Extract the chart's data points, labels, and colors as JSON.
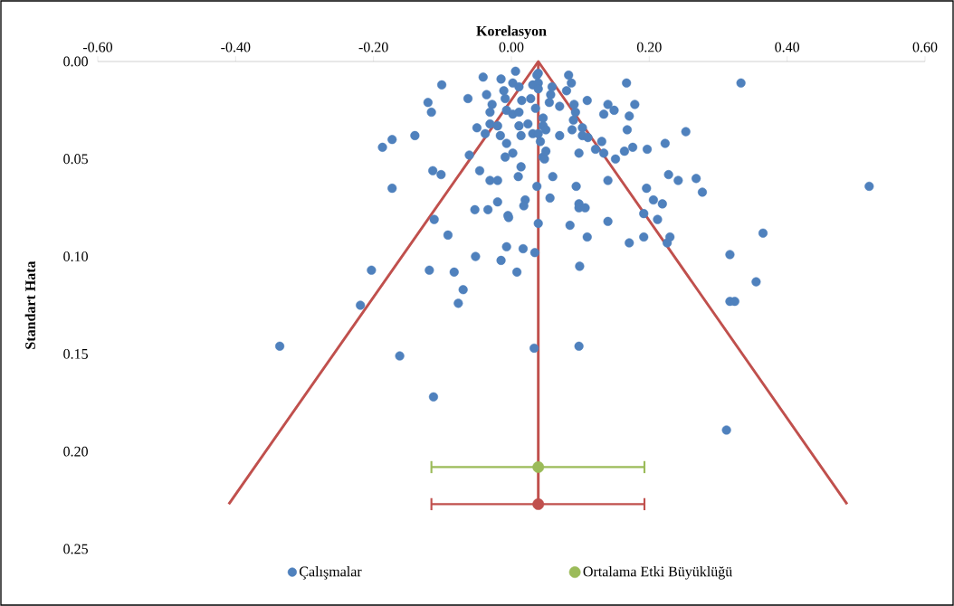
{
  "chart_data": {
    "type": "scatter",
    "xlabel": "Korelasyon",
    "ylabel": "Standart Hata",
    "xlim": [
      -0.6,
      0.6
    ],
    "ylim": [
      0.25,
      0.0
    ],
    "xticks": [
      {
        "value": -0.6,
        "label": "-0.60"
      },
      {
        "value": -0.4,
        "label": "-0.40"
      },
      {
        "value": -0.2,
        "label": "-0.20"
      },
      {
        "value": 0.0,
        "label": "0.00"
      },
      {
        "value": 0.2,
        "label": "0.20"
      },
      {
        "value": 0.4,
        "label": "0.40"
      },
      {
        "value": 0.6,
        "label": "0.60"
      }
    ],
    "yticks": [
      {
        "value": 0.0,
        "label": "0.00"
      },
      {
        "value": 0.05,
        "label": "0.05"
      },
      {
        "value": 0.1,
        "label": "0.10"
      },
      {
        "value": 0.15,
        "label": "0.15"
      },
      {
        "value": 0.2,
        "label": "0.20"
      },
      {
        "value": 0.25,
        "label": "0.25"
      }
    ],
    "marker": "circle",
    "legend": "bottom",
    "series": [
      {
        "name": "Çalışmalar",
        "color": "#4f81bd",
        "x": [
          -0.041,
          -0.015,
          0.006,
          -0.101,
          -0.121,
          -0.116,
          -0.063,
          -0.036,
          -0.011,
          -0.009,
          0.002,
          -0.028,
          -0.031,
          -0.007,
          0.002,
          0.011,
          0.015,
          0.028,
          0.035,
          0.031,
          0.037,
          0.011,
          -0.031,
          -0.02,
          -0.05,
          -0.038,
          -0.016,
          -0.007,
          0.011,
          0.024,
          0.014,
          0.031,
          0.042,
          -0.14,
          -0.173,
          -0.187,
          -0.061,
          -0.009,
          0.002,
          0.014,
          0.01,
          -0.114,
          -0.102,
          -0.046,
          -0.031,
          -0.02,
          0.046,
          0.039,
          0.039,
          0.039,
          0.059,
          0.057,
          0.055,
          0.083,
          0.087,
          0.08,
          0.07,
          0.11,
          0.091,
          0.093,
          0.09,
          0.088,
          0.103,
          0.103,
          0.111,
          0.14,
          0.149,
          0.134,
          0.167,
          0.179,
          0.171,
          0.168,
          0.046,
          0.046,
          0.039,
          0.05,
          0.07,
          0.253,
          0.223,
          0.197,
          0.176,
          0.164,
          0.131,
          0.122,
          0.134,
          0.151,
          0.098,
          0.05,
          0.048,
          0.06,
          0.14,
          0.228,
          0.242,
          0.268,
          -0.173,
          0.037,
          0.02,
          0.018,
          -0.02,
          -0.034,
          -0.053,
          -0.005,
          -0.004,
          0.039,
          -0.112,
          -0.092,
          -0.007,
          0.017,
          0.034,
          -0.052,
          -0.015,
          -0.203,
          -0.119,
          -0.083,
          0.008,
          -0.07,
          -0.077,
          0.094,
          0.277,
          0.196,
          0.206,
          0.219,
          0.192,
          0.212,
          0.056,
          0.098,
          0.098,
          0.107,
          0.085,
          0.14,
          0.11,
          0.171,
          0.192,
          0.23,
          0.226,
          0.099,
          0.317,
          -0.219,
          -0.336,
          0.333,
          0.519,
          0.365,
          0.355,
          0.317,
          0.324,
          0.312,
          -0.162,
          -0.113,
          0.033,
          0.098
        ],
        "values": [
          0.008,
          0.009,
          0.005,
          0.012,
          0.021,
          0.026,
          0.019,
          0.017,
          0.015,
          0.019,
          0.011,
          0.022,
          0.026,
          0.025,
          0.027,
          0.026,
          0.02,
          0.019,
          0.024,
          0.012,
          0.007,
          0.013,
          0.032,
          0.033,
          0.034,
          0.037,
          0.038,
          0.042,
          0.033,
          0.032,
          0.038,
          0.037,
          0.041,
          0.038,
          0.04,
          0.044,
          0.048,
          0.049,
          0.047,
          0.054,
          0.059,
          0.056,
          0.058,
          0.056,
          0.061,
          0.061,
          0.049,
          0.006,
          0.011,
          0.014,
          0.013,
          0.017,
          0.021,
          0.007,
          0.011,
          0.015,
          0.023,
          0.02,
          0.022,
          0.026,
          0.03,
          0.035,
          0.034,
          0.038,
          0.039,
          0.022,
          0.025,
          0.027,
          0.011,
          0.022,
          0.028,
          0.035,
          0.029,
          0.033,
          0.037,
          0.035,
          0.038,
          0.036,
          0.042,
          0.045,
          0.044,
          0.046,
          0.041,
          0.045,
          0.047,
          0.05,
          0.047,
          0.046,
          0.05,
          0.059,
          0.061,
          0.058,
          0.061,
          0.06,
          0.065,
          0.064,
          0.071,
          0.074,
          0.072,
          0.076,
          0.076,
          0.079,
          0.08,
          0.083,
          0.081,
          0.089,
          0.095,
          0.096,
          0.098,
          0.1,
          0.102,
          0.107,
          0.107,
          0.108,
          0.108,
          0.117,
          0.124,
          0.064,
          0.067,
          0.065,
          0.071,
          0.073,
          0.078,
          0.081,
          0.07,
          0.073,
          0.075,
          0.075,
          0.084,
          0.082,
          0.09,
          0.093,
          0.09,
          0.09,
          0.093,
          0.105,
          0.099,
          0.125,
          0.146,
          0.011,
          0.064,
          0.088,
          0.113,
          0.123,
          0.123,
          0.189,
          0.151,
          0.172,
          0.147,
          0.146
        ]
      },
      {
        "type": "line",
        "marker": "none",
        "color": "#c0504d",
        "x": [
          -0.41,
          0.039,
          0.487
        ],
        "values": [
          0.227,
          0.0,
          0.227
        ]
      },
      {
        "type": "line",
        "marker": "none",
        "color": "#c0504d",
        "x": [
          0.039,
          0.039
        ],
        "values": [
          0.0,
          0.227
        ]
      },
      {
        "name": "Ortalama Etki Büyüklüğü",
        "color": "#9bbb59",
        "x": [
          0.039
        ],
        "values": [
          0.208
        ],
        "xerrors": [
          [
            -0.116,
            0.193
          ]
        ]
      },
      {
        "color": "#c0504d",
        "x": [
          0.039
        ],
        "values": [
          0.227
        ],
        "xerrors": [
          [
            -0.116,
            0.193
          ]
        ]
      }
    ]
  }
}
